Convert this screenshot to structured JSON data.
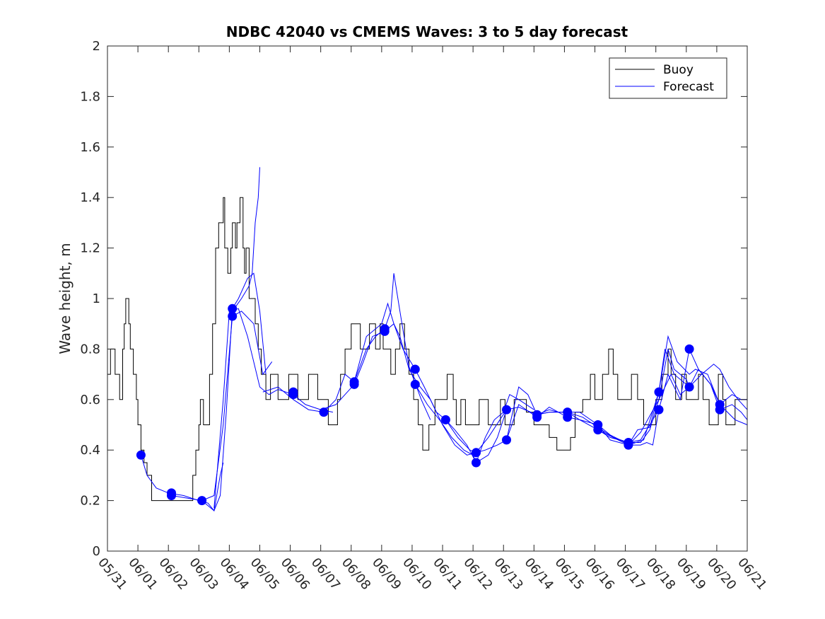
{
  "chart_data": {
    "type": "line",
    "title": "NDBC 42040 vs CMEMS Waves: 3 to 5 day forecast",
    "xlabel": "",
    "ylabel": "Wave height, m",
    "ylim": [
      0,
      2
    ],
    "yticks": [
      "0",
      "0.2",
      "0.4",
      "0.6",
      "0.8",
      "1",
      "1.2",
      "1.4",
      "1.6",
      "1.8",
      "2"
    ],
    "xlim_days": [
      0,
      21
    ],
    "xticks": [
      "05/31",
      "06/01",
      "06/02",
      "06/03",
      "06/04",
      "06/05",
      "06/06",
      "06/07",
      "06/08",
      "06/09",
      "06/10",
      "06/11",
      "06/12",
      "06/13",
      "06/14",
      "06/15",
      "06/16",
      "06/17",
      "06/18",
      "06/19",
      "06/20",
      "06/21"
    ],
    "grid": false,
    "legend": {
      "position": "top-right",
      "entries": [
        "Buoy",
        "Forecast"
      ]
    },
    "colors": {
      "buoy": "#000000",
      "forecast": "#0000ff"
    },
    "buoy": [
      [
        0.0,
        0.7
      ],
      [
        0.1,
        0.8
      ],
      [
        0.25,
        0.7
      ],
      [
        0.4,
        0.6
      ],
      [
        0.5,
        0.8
      ],
      [
        0.55,
        0.9
      ],
      [
        0.6,
        1.0
      ],
      [
        0.7,
        0.9
      ],
      [
        0.75,
        0.8
      ],
      [
        0.85,
        0.7
      ],
      [
        0.95,
        0.6
      ],
      [
        1.0,
        0.5
      ],
      [
        1.1,
        0.4
      ],
      [
        1.2,
        0.35
      ],
      [
        1.3,
        0.3
      ],
      [
        1.45,
        0.2
      ],
      [
        2.75,
        0.2
      ],
      [
        2.8,
        0.3
      ],
      [
        2.9,
        0.4
      ],
      [
        3.0,
        0.5
      ],
      [
        3.05,
        0.6
      ],
      [
        3.15,
        0.5
      ],
      [
        3.35,
        0.7
      ],
      [
        3.45,
        0.9
      ],
      [
        3.55,
        1.2
      ],
      [
        3.65,
        1.3
      ],
      [
        3.75,
        1.3
      ],
      [
        3.8,
        1.4
      ],
      [
        3.85,
        1.2
      ],
      [
        3.95,
        1.1
      ],
      [
        4.05,
        1.2
      ],
      [
        4.1,
        1.3
      ],
      [
        4.2,
        1.2
      ],
      [
        4.25,
        1.3
      ],
      [
        4.35,
        1.4
      ],
      [
        4.45,
        1.2
      ],
      [
        4.5,
        1.1
      ],
      [
        4.55,
        1.2
      ],
      [
        4.65,
        1.0
      ],
      [
        4.75,
        1.0
      ],
      [
        4.85,
        0.9
      ],
      [
        4.95,
        0.8
      ],
      [
        5.05,
        0.7
      ],
      [
        5.2,
        0.6
      ],
      [
        5.35,
        0.7
      ],
      [
        5.5,
        0.7
      ],
      [
        5.6,
        0.6
      ],
      [
        5.8,
        0.6
      ],
      [
        5.95,
        0.7
      ],
      [
        6.15,
        0.7
      ],
      [
        6.25,
        0.6
      ],
      [
        6.55,
        0.6
      ],
      [
        6.6,
        0.7
      ],
      [
        6.85,
        0.7
      ],
      [
        6.9,
        0.6
      ],
      [
        7.2,
        0.6
      ],
      [
        7.25,
        0.5
      ],
      [
        7.4,
        0.5
      ],
      [
        7.55,
        0.6
      ],
      [
        7.65,
        0.7
      ],
      [
        7.8,
        0.8
      ],
      [
        8.0,
        0.9
      ],
      [
        8.3,
        0.8
      ],
      [
        8.6,
        0.9
      ],
      [
        8.8,
        0.8
      ],
      [
        8.95,
        0.9
      ],
      [
        9.05,
        0.8
      ],
      [
        9.3,
        0.7
      ],
      [
        9.45,
        0.8
      ],
      [
        9.6,
        0.9
      ],
      [
        9.75,
        0.8
      ],
      [
        9.9,
        0.7
      ],
      [
        10.05,
        0.6
      ],
      [
        10.2,
        0.5
      ],
      [
        10.35,
        0.4
      ],
      [
        10.5,
        0.4
      ],
      [
        10.55,
        0.5
      ],
      [
        10.75,
        0.6
      ],
      [
        11.0,
        0.6
      ],
      [
        11.15,
        0.7
      ],
      [
        11.35,
        0.6
      ],
      [
        11.45,
        0.5
      ],
      [
        11.6,
        0.6
      ],
      [
        11.75,
        0.5
      ],
      [
        12.0,
        0.5
      ],
      [
        12.2,
        0.6
      ],
      [
        12.5,
        0.5
      ],
      [
        12.75,
        0.5
      ],
      [
        12.9,
        0.6
      ],
      [
        13.05,
        0.5
      ],
      [
        13.25,
        0.5
      ],
      [
        13.35,
        0.6
      ],
      [
        13.6,
        0.6
      ],
      [
        13.75,
        0.55
      ],
      [
        14.0,
        0.5
      ],
      [
        14.3,
        0.5
      ],
      [
        14.5,
        0.45
      ],
      [
        14.75,
        0.4
      ],
      [
        15.0,
        0.4
      ],
      [
        15.2,
        0.45
      ],
      [
        15.35,
        0.55
      ],
      [
        15.6,
        0.6
      ],
      [
        15.85,
        0.7
      ],
      [
        16.0,
        0.6
      ],
      [
        16.25,
        0.7
      ],
      [
        16.45,
        0.8
      ],
      [
        16.6,
        0.7
      ],
      [
        16.75,
        0.6
      ],
      [
        17.0,
        0.6
      ],
      [
        17.2,
        0.7
      ],
      [
        17.4,
        0.6
      ],
      [
        17.6,
        0.5
      ],
      [
        17.85,
        0.5
      ],
      [
        18.0,
        0.6
      ],
      [
        18.2,
        0.7
      ],
      [
        18.4,
        0.8
      ],
      [
        18.5,
        0.7
      ],
      [
        18.65,
        0.6
      ],
      [
        18.85,
        0.7
      ],
      [
        19.0,
        0.6
      ],
      [
        19.25,
        0.6
      ],
      [
        19.4,
        0.7
      ],
      [
        19.55,
        0.6
      ],
      [
        19.75,
        0.5
      ],
      [
        19.95,
        0.5
      ],
      [
        20.05,
        0.7
      ],
      [
        20.2,
        0.6
      ],
      [
        20.3,
        0.5
      ],
      [
        20.45,
        0.5
      ],
      [
        20.6,
        0.6
      ],
      [
        20.8,
        0.6
      ],
      [
        21.0,
        0.6
      ]
    ],
    "forecast": [
      [
        [
          1.1,
          0.38
        ],
        [
          1.3,
          0.3
        ],
        [
          1.6,
          0.25
        ],
        [
          2.0,
          0.23
        ],
        [
          2.5,
          0.22
        ],
        [
          3.0,
          0.2
        ],
        [
          3.3,
          0.19
        ],
        [
          3.5,
          0.16
        ],
        [
          3.7,
          0.3
        ],
        [
          3.8,
          0.35
        ]
      ],
      [
        [
          2.1,
          0.22
        ],
        [
          2.6,
          0.21
        ],
        [
          3.1,
          0.2
        ],
        [
          3.5,
          0.22
        ],
        [
          3.8,
          0.5
        ],
        [
          4.1,
          0.93
        ],
        [
          4.4,
          0.95
        ],
        [
          4.8,
          0.9
        ],
        [
          5.1,
          0.7
        ],
        [
          5.4,
          0.75
        ]
      ],
      [
        [
          3.1,
          0.2
        ],
        [
          3.5,
          0.16
        ],
        [
          3.7,
          0.22
        ],
        [
          3.9,
          0.55
        ],
        [
          4.1,
          0.96
        ],
        [
          4.3,
          1.0
        ],
        [
          4.6,
          1.08
        ],
        [
          4.8,
          1.1
        ],
        [
          5.0,
          0.95
        ],
        [
          5.2,
          0.7
        ]
      ],
      [
        [
          3.5,
          0.17
        ],
        [
          3.8,
          0.6
        ],
        [
          4.0,
          0.95
        ],
        [
          4.3,
          0.96
        ],
        [
          4.6,
          0.85
        ],
        [
          5.0,
          0.65
        ],
        [
          5.3,
          0.62
        ],
        [
          5.6,
          0.64
        ],
        [
          6.1,
          0.62
        ],
        [
          6.5,
          0.58
        ],
        [
          7.0,
          0.56
        ],
        [
          7.4,
          0.55
        ]
      ],
      [
        [
          4.1,
          0.95
        ],
        [
          4.4,
          1.0
        ],
        [
          4.65,
          1.05
        ],
        [
          4.75,
          1.1
        ],
        [
          4.85,
          1.3
        ],
        [
          4.95,
          1.4
        ],
        [
          5.0,
          1.52
        ]
      ],
      [
        [
          5.1,
          0.63
        ],
        [
          5.6,
          0.65
        ],
        [
          6.1,
          0.6
        ],
        [
          6.6,
          0.56
        ],
        [
          7.1,
          0.55
        ],
        [
          7.5,
          0.6
        ],
        [
          7.8,
          0.7
        ],
        [
          8.1,
          0.67
        ],
        [
          8.5,
          0.8
        ],
        [
          8.8,
          0.85
        ],
        [
          9.1,
          0.88
        ],
        [
          9.3,
          0.95
        ],
        [
          9.4,
          1.1
        ],
        [
          9.6,
          0.95
        ],
        [
          9.9,
          0.73
        ],
        [
          10.3,
          0.6
        ],
        [
          10.6,
          0.52
        ]
      ],
      [
        [
          7.0,
          0.56
        ],
        [
          7.5,
          0.58
        ],
        [
          7.8,
          0.62
        ],
        [
          8.1,
          0.66
        ],
        [
          8.4,
          0.75
        ],
        [
          8.7,
          0.85
        ],
        [
          9.1,
          0.87
        ],
        [
          9.4,
          0.9
        ],
        [
          9.6,
          0.85
        ],
        [
          9.9,
          0.72
        ],
        [
          10.2,
          0.66
        ],
        [
          10.6,
          0.6
        ],
        [
          11.0,
          0.5
        ],
        [
          11.4,
          0.42
        ],
        [
          11.8,
          0.38
        ],
        [
          12.1,
          0.39
        ]
      ],
      [
        [
          8.1,
          0.67
        ],
        [
          8.5,
          0.85
        ],
        [
          9.0,
          0.9
        ],
        [
          9.2,
          0.98
        ],
        [
          9.4,
          0.9
        ],
        [
          9.7,
          0.8
        ],
        [
          10.1,
          0.72
        ],
        [
          10.4,
          0.65
        ],
        [
          10.8,
          0.55
        ],
        [
          11.1,
          0.52
        ],
        [
          11.4,
          0.48
        ],
        [
          11.8,
          0.42
        ],
        [
          12.1,
          0.35
        ],
        [
          12.5,
          0.38
        ],
        [
          12.8,
          0.45
        ],
        [
          13.1,
          0.56
        ]
      ],
      [
        [
          10.1,
          0.66
        ],
        [
          10.5,
          0.58
        ],
        [
          10.9,
          0.52
        ],
        [
          11.3,
          0.45
        ],
        [
          11.7,
          0.4
        ],
        [
          12.0,
          0.38
        ],
        [
          12.1,
          0.35
        ],
        [
          12.4,
          0.45
        ],
        [
          12.7,
          0.52
        ],
        [
          13.0,
          0.55
        ],
        [
          13.2,
          0.62
        ],
        [
          13.5,
          0.6
        ],
        [
          14.0,
          0.56
        ]
      ],
      [
        [
          11.1,
          0.52
        ],
        [
          11.5,
          0.45
        ],
        [
          11.9,
          0.4
        ],
        [
          12.1,
          0.39
        ],
        [
          12.4,
          0.4
        ],
        [
          12.8,
          0.42
        ],
        [
          13.1,
          0.44
        ],
        [
          13.3,
          0.55
        ],
        [
          13.5,
          0.65
        ],
        [
          13.8,
          0.62
        ],
        [
          14.1,
          0.54
        ],
        [
          14.5,
          0.56
        ],
        [
          14.8,
          0.55
        ]
      ],
      [
        [
          12.1,
          0.39
        ],
        [
          12.5,
          0.45
        ],
        [
          13.1,
          0.56
        ],
        [
          13.5,
          0.57
        ],
        [
          14.1,
          0.54
        ],
        [
          14.5,
          0.55
        ],
        [
          15.1,
          0.55
        ],
        [
          15.5,
          0.55
        ],
        [
          16.1,
          0.5
        ],
        [
          16.5,
          0.46
        ],
        [
          17.0,
          0.43
        ]
      ],
      [
        [
          13.1,
          0.44
        ],
        [
          13.5,
          0.58
        ],
        [
          14.1,
          0.53
        ],
        [
          14.5,
          0.57
        ],
        [
          15.1,
          0.53
        ],
        [
          15.5,
          0.52
        ],
        [
          16.1,
          0.48
        ],
        [
          16.5,
          0.45
        ],
        [
          17.1,
          0.43
        ],
        [
          17.5,
          0.44
        ],
        [
          17.8,
          0.5
        ],
        [
          18.1,
          0.56
        ]
      ],
      [
        [
          14.1,
          0.54
        ],
        [
          14.5,
          0.55
        ],
        [
          15.1,
          0.55
        ],
        [
          15.5,
          0.52
        ],
        [
          16.1,
          0.5
        ],
        [
          16.5,
          0.44
        ],
        [
          17.1,
          0.42
        ],
        [
          17.5,
          0.47
        ],
        [
          18.1,
          0.6
        ],
        [
          18.4,
          0.8
        ],
        [
          18.6,
          0.72
        ],
        [
          19.0,
          0.68
        ],
        [
          19.1,
          0.65
        ]
      ],
      [
        [
          15.1,
          0.55
        ],
        [
          15.6,
          0.53
        ],
        [
          16.1,
          0.49
        ],
        [
          16.6,
          0.45
        ],
        [
          17.1,
          0.42
        ],
        [
          17.6,
          0.44
        ],
        [
          18.1,
          0.63
        ],
        [
          18.4,
          0.85
        ],
        [
          18.7,
          0.75
        ],
        [
          19.1,
          0.7
        ],
        [
          19.3,
          0.72
        ],
        [
          19.7,
          0.7
        ],
        [
          20.1,
          0.58
        ],
        [
          20.6,
          0.52
        ],
        [
          21.0,
          0.5
        ]
      ],
      [
        [
          16.1,
          0.48
        ],
        [
          16.6,
          0.45
        ],
        [
          17.1,
          0.43
        ],
        [
          17.5,
          0.43
        ],
        [
          17.8,
          0.48
        ],
        [
          18.1,
          0.6
        ],
        [
          18.5,
          0.7
        ],
        [
          18.8,
          0.62
        ],
        [
          19.1,
          0.65
        ],
        [
          19.5,
          0.7
        ],
        [
          19.9,
          0.74
        ],
        [
          20.1,
          0.72
        ],
        [
          20.4,
          0.65
        ],
        [
          20.7,
          0.6
        ],
        [
          21.0,
          0.56
        ]
      ],
      [
        [
          17.1,
          0.42
        ],
        [
          17.5,
          0.42
        ],
        [
          17.7,
          0.43
        ],
        [
          17.9,
          0.42
        ],
        [
          18.1,
          0.56
        ],
        [
          18.4,
          0.7
        ],
        [
          18.8,
          0.6
        ],
        [
          19.1,
          0.8
        ],
        [
          19.4,
          0.72
        ],
        [
          19.8,
          0.66
        ],
        [
          20.1,
          0.56
        ],
        [
          20.5,
          0.58
        ],
        [
          20.8,
          0.55
        ],
        [
          21.0,
          0.52
        ]
      ],
      [
        [
          17.1,
          0.42
        ],
        [
          17.4,
          0.48
        ],
        [
          17.8,
          0.49
        ],
        [
          18.1,
          0.63
        ],
        [
          18.3,
          0.8
        ],
        [
          18.6,
          0.7
        ],
        [
          19.1,
          0.65
        ],
        [
          19.4,
          0.72
        ],
        [
          19.8,
          0.66
        ],
        [
          20.1,
          0.58
        ],
        [
          20.5,
          0.62
        ],
        [
          20.8,
          0.6
        ],
        [
          21.0,
          0.6
        ]
      ]
    ],
    "markers": [
      [
        1.1,
        0.38
      ],
      [
        2.1,
        0.23
      ],
      [
        2.1,
        0.22
      ],
      [
        3.1,
        0.2
      ],
      [
        4.1,
        0.96
      ],
      [
        4.1,
        0.93
      ],
      [
        6.1,
        0.63
      ],
      [
        6.1,
        0.62
      ],
      [
        7.1,
        0.55
      ],
      [
        8.1,
        0.67
      ],
      [
        8.1,
        0.66
      ],
      [
        9.1,
        0.88
      ],
      [
        9.1,
        0.87
      ],
      [
        10.1,
        0.72
      ],
      [
        10.1,
        0.66
      ],
      [
        11.1,
        0.52
      ],
      [
        12.1,
        0.39
      ],
      [
        12.1,
        0.35
      ],
      [
        13.1,
        0.56
      ],
      [
        13.1,
        0.44
      ],
      [
        14.1,
        0.54
      ],
      [
        14.1,
        0.53
      ],
      [
        15.1,
        0.55
      ],
      [
        15.1,
        0.53
      ],
      [
        16.1,
        0.5
      ],
      [
        16.1,
        0.48
      ],
      [
        17.1,
        0.43
      ],
      [
        17.1,
        0.42
      ],
      [
        18.1,
        0.63
      ],
      [
        18.1,
        0.56
      ],
      [
        19.1,
        0.8
      ],
      [
        19.1,
        0.65
      ],
      [
        20.1,
        0.58
      ],
      [
        20.1,
        0.56
      ]
    ]
  }
}
